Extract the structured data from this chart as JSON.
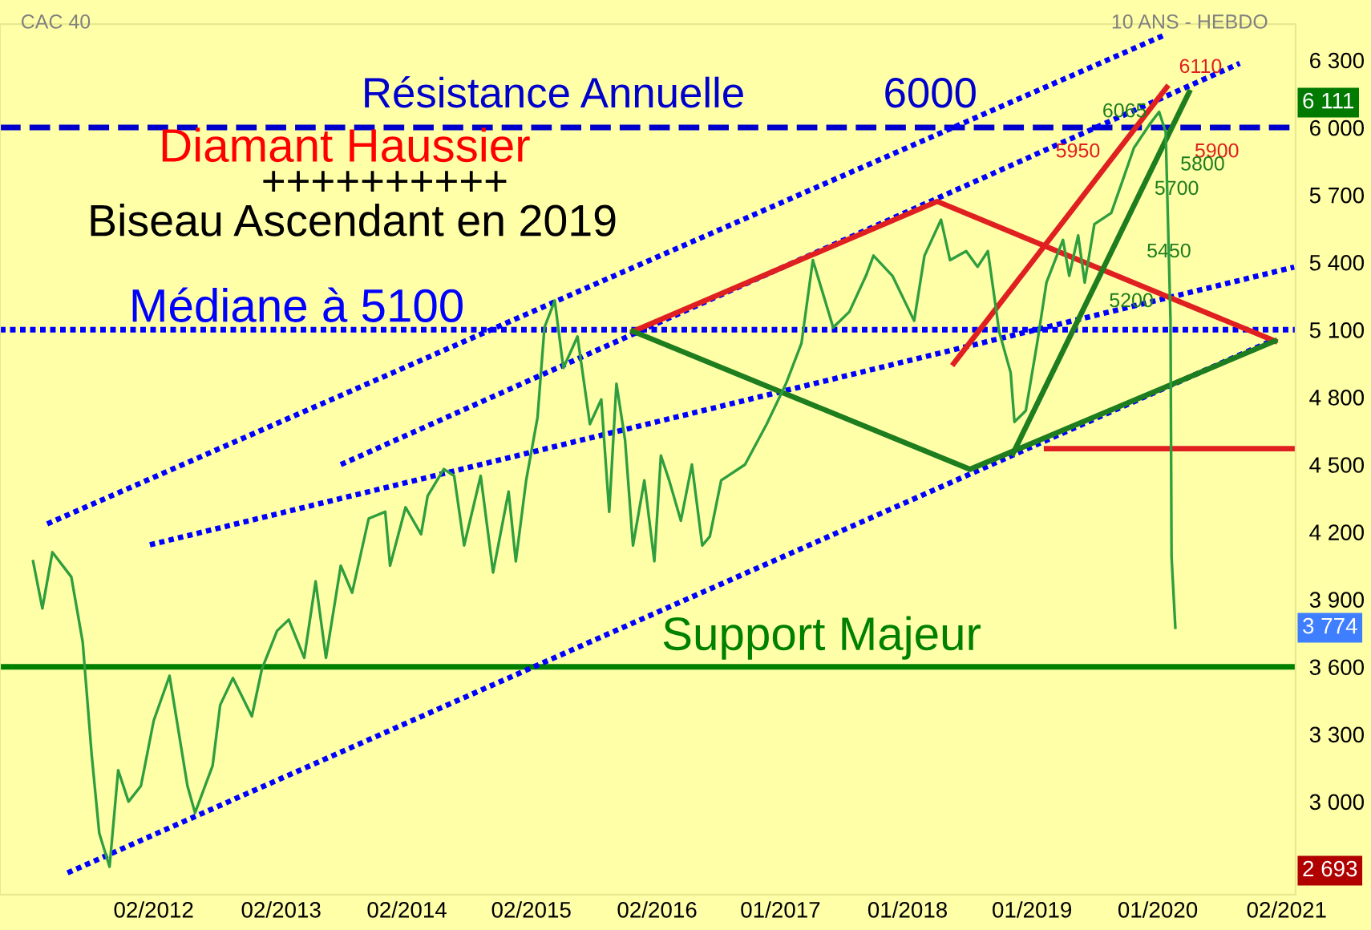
{
  "chart_data": {
    "type": "line",
    "title": "CAC 40",
    "subtitle": "10 ANS - HEBDO",
    "xlim": [
      "2010-11-10",
      "2021-02-25"
    ],
    "ylim": [
      2586,
      6460
    ],
    "xticks": [
      {
        "value": "2012-01-30",
        "label": "02/2012"
      },
      {
        "value": "2013-02-03",
        "label": "02/2013"
      },
      {
        "value": "2014-02-03",
        "label": "02/2014"
      },
      {
        "value": "2015-01-30",
        "label": "02/2015"
      },
      {
        "value": "2016-01-30",
        "label": "02/2016"
      },
      {
        "value": "2017-01-22",
        "label": "01/2017"
      },
      {
        "value": "2018-01-26",
        "label": "01/2018"
      },
      {
        "value": "2019-01-22",
        "label": "01/2019"
      },
      {
        "value": "2020-01-22",
        "label": "01/2020"
      },
      {
        "value": "2021-01-30",
        "label": "02/2021"
      }
    ],
    "yticks": [
      {
        "value": 3000,
        "label": "3 000"
      },
      {
        "value": 3300,
        "label": "3 300"
      },
      {
        "value": 3600,
        "label": "3 600"
      },
      {
        "value": 3900,
        "label": "3 900"
      },
      {
        "value": 4200,
        "label": "4 200"
      },
      {
        "value": 4500,
        "label": "4 500"
      },
      {
        "value": 4800,
        "label": "4 800"
      },
      {
        "value": 5100,
        "label": "5 100"
      },
      {
        "value": 5400,
        "label": "5 400"
      },
      {
        "value": 5700,
        "label": "5 700"
      },
      {
        "value": 6000,
        "label": "6 000"
      },
      {
        "value": 6300,
        "label": "6 300"
      }
    ],
    "tick_labels": "xy",
    "series": [
      {
        "color": "#2e9e3e",
        "x": [
          "2011-02-14",
          "2011-03-13",
          "2011-04-11",
          "2011-06-05",
          "2011-07-08",
          "2011-08-03",
          "2011-08-25",
          "2011-09-24",
          "2011-10-19",
          "2011-11-18",
          "2011-12-24",
          "2012-01-30",
          "2012-03-16",
          "2012-05-07",
          "2012-05-29",
          "2012-07-19",
          "2012-08-10",
          "2012-09-16",
          "2012-11-10",
          "2012-12-09",
          "2013-01-22",
          "2013-02-25",
          "2013-04-11",
          "2013-05-14",
          "2013-06-13",
          "2013-07-26",
          "2013-08-28",
          "2013-10-15",
          "2013-12-02",
          "2013-12-16",
          "2014-01-30",
          "2014-03-16",
          "2014-04-04",
          "2014-05-21",
          "2014-06-20",
          "2014-07-19",
          "2014-09-05",
          "2014-10-11",
          "2014-11-25",
          "2014-12-16",
          "2015-01-15",
          "2015-02-17",
          "2015-03-09",
          "2015-04-08",
          "2015-05-03",
          "2015-06-13",
          "2015-07-19",
          "2015-08-21",
          "2015-09-13",
          "2015-10-04",
          "2015-10-29",
          "2015-11-21",
          "2015-12-24",
          "2016-01-22",
          "2016-02-10",
          "2016-03-05",
          "2016-04-08",
          "2016-05-10",
          "2016-06-09",
          "2016-07-01",
          "2016-08-03",
          "2016-10-11",
          "2016-12-13",
          "2017-02-07",
          "2017-03-24",
          "2017-04-26",
          "2017-06-24",
          "2017-08-10",
          "2017-09-27",
          "2017-10-19",
          "2017-12-13",
          "2018-02-14",
          "2018-03-16",
          "2018-05-03",
          "2018-05-29",
          "2018-07-15",
          "2018-08-17",
          "2018-09-16",
          "2018-10-19",
          "2018-11-21",
          "2018-12-02",
          "2019-01-04",
          "2019-02-07",
          "2019-03-05",
          "2019-04-22",
          "2019-05-10",
          "2019-06-05",
          "2019-06-24",
          "2019-07-22",
          "2019-09-09",
          "2019-10-11",
          "2019-11-14",
          "2020-01-01",
          "2020-01-26",
          "2020-02-14",
          "2020-02-28",
          "2020-03-02",
          "2020-03-13"
        ],
        "values": [
          4070,
          3860,
          4110,
          4000,
          3710,
          3210,
          2860,
          2710,
          3140,
          3000,
          3070,
          3360,
          3560,
          3070,
          2950,
          3160,
          3430,
          3550,
          3380,
          3590,
          3760,
          3810,
          3640,
          3980,
          3640,
          4050,
          3930,
          4260,
          4290,
          4050,
          4310,
          4190,
          4360,
          4480,
          4450,
          4140,
          4450,
          4020,
          4380,
          4070,
          4430,
          4710,
          5110,
          5230,
          4930,
          5070,
          4680,
          4790,
          4290,
          4860,
          4610,
          4140,
          4430,
          4070,
          4540,
          4430,
          4250,
          4500,
          4140,
          4180,
          4430,
          4500,
          4680,
          4860,
          5040,
          5410,
          5110,
          5180,
          5340,
          5430,
          5340,
          5140,
          5430,
          5590,
          5410,
          5450,
          5380,
          5450,
          5090,
          4910,
          4690,
          4740,
          5050,
          5310,
          5500,
          5340,
          5520,
          5310,
          5570,
          5620,
          5760,
          5910,
          6020,
          6070,
          5980,
          5140,
          4090,
          3774
        ]
      },
      {
        "color": "#0000ff",
        "line_style": "dotted",
        "x": [
          "2011-03-27",
          "2020-02-14"
        ],
        "values": [
          4236,
          6414
        ]
      },
      {
        "color": "#0000ff",
        "line_style": "dotted",
        "x": [
          "2013-07-26",
          "2020-09-16"
        ],
        "values": [
          4500,
          6286
        ]
      },
      {
        "color": "#0000ff",
        "line_style": "dotted",
        "x": [
          "2012-01-19",
          "2021-02-21"
        ],
        "values": [
          4143,
          5379
        ]
      },
      {
        "color": "#0000ff",
        "line_style": "dotted",
        "x": [
          "2011-05-25",
          "2020-12-16"
        ],
        "values": [
          2683,
          5050
        ]
      },
      {
        "color": "#e02020",
        "x": [
          "2015-11-21",
          "2018-04-22",
          "2020-12-27"
        ],
        "values": [
          5093,
          5671,
          5050
        ]
      },
      {
        "color": "#1e7d1e",
        "x": [
          "2015-11-21",
          "2018-07-26",
          "2020-12-27"
        ],
        "values": [
          5093,
          4479,
          5050
        ]
      },
      {
        "color": "#e02020",
        "x": [
          "2018-06-09",
          "2020-02-17"
        ],
        "values": [
          4950,
          6179
        ]
      },
      {
        "color": "#1e7d1e",
        "x": [
          "2018-11-28",
          "2020-04-22"
        ],
        "values": [
          4550,
          6157
        ]
      },
      {
        "color": "#e02020",
        "x": [
          "2019-03-05",
          "2021-02-21"
        ],
        "values": [
          4571,
          4571
        ]
      }
    ],
    "ref_lines": [
      {
        "axis": "y",
        "value": 6000,
        "color": "#0000cc",
        "line_style": "dashed"
      },
      {
        "axis": "y",
        "value": 5100,
        "color": "#0000ff",
        "line_style": "dotted"
      },
      {
        "axis": "y",
        "value": 3600,
        "color": "#008000",
        "line_style": "solid"
      }
    ],
    "annotations": [
      "Résistance Annuelle",
      "6000",
      "Diamant Haussier",
      "++++++++++",
      "Biseau Ascendant en 2019",
      "Médiane à 5100",
      "Support Majeur",
      "6110",
      "6065",
      "5950",
      "5900",
      "5800",
      "5700",
      "5450",
      "5200",
      {
        "text": "6 111",
        "y": 6111
      },
      {
        "text": "3 774",
        "y": 3774
      },
      {
        "text": "2 693",
        "y": 2693
      }
    ]
  }
}
